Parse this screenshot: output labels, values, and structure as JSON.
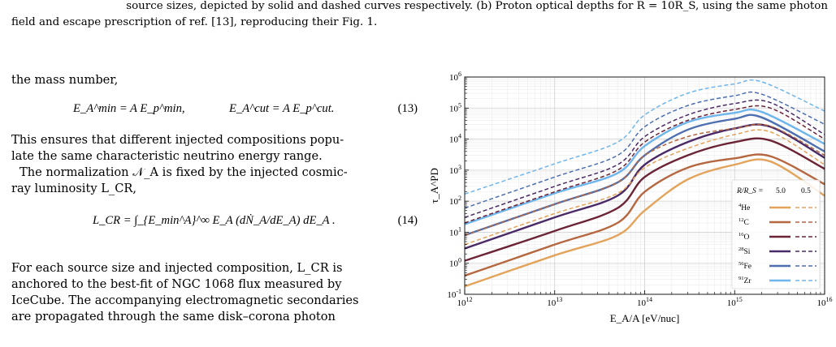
{
  "caption": {
    "line1": "source sizes, depicted by solid and dashed curves respectively. (b) Proton optical depths for R = 10R_S, using the same photon",
    "line2": "field and escape prescription of ref. [13], reproducing their Fig. 1."
  },
  "body": {
    "p1": "the mass number,",
    "eq13_left": "E_A^min = A E_p^min,",
    "eq13_right": "E_A^cut = A E_p^cut.",
    "eq13_num": "(13)",
    "p2_l1": "This ensures that different injected compositions popu-",
    "p2_l2": "late the same characteristic neutrino energy range.",
    "p3_l1": "The normalization 𝒩_A is fixed by the injected cosmic-",
    "p3_l2": "ray luminosity L_CR,",
    "eq14": "L_CR = ∫_{E_min^A}^∞ E_A (dṄ_A/dE_A) dE_A .",
    "eq14_num": "(14)",
    "p4_l1": "For each source size and injected composition, L_CR is",
    "p4_l2": "anchored to the best-fit of NGC 1068 flux measured by",
    "p4_l3": "IceCube. The accompanying electromagnetic secondaries",
    "p4_l4": "are propagated through the same disk–corona photon"
  },
  "chart_data": {
    "type": "line",
    "xlabel": "E_A/A [eV/nuc]",
    "ylabel": "τ_A^PD",
    "x_scale": "log",
    "y_scale": "log",
    "xlim": [
      1000000000000.0,
      1e+16
    ],
    "ylim": [
      0.1,
      1000000.0
    ],
    "x_ticks": [
      "10^12",
      "10^13",
      "10^14",
      "10^15",
      "10^16"
    ],
    "y_ticks": [
      "10^-1",
      "10^0",
      "10^1",
      "10^2",
      "10^3",
      "10^4",
      "10^5",
      "10^6"
    ],
    "grid": true,
    "legend": {
      "placement": "bottom-right",
      "header": "R/R_S =",
      "col_solid": "5.0",
      "col_dashed": "0.5",
      "rows": [
        {
          "mass": "4",
          "elem": "He",
          "color": "#e3a35a"
        },
        {
          "mass": "12",
          "elem": "C",
          "color": "#b5673f"
        },
        {
          "mass": "16",
          "elem": "O",
          "color": "#6b2436"
        },
        {
          "mass": "28",
          "elem": "Si",
          "color": "#4a2a66"
        },
        {
          "mass": "56",
          "elem": "Fe",
          "color": "#4d6fb0"
        },
        {
          "mass": "91",
          "elem": "Zr",
          "color": "#6eb6ec"
        }
      ]
    },
    "series": [
      {
        "name": "4He",
        "size": "5.0",
        "style": "solid",
        "color": "#e3a35a",
        "x": [
          1000000000000.0,
          10000000000000.0,
          50000000000000.0,
          100000000000000.0,
          300000000000000.0,
          1000000000000000.0,
          2500000000000000.0,
          1e+16
        ],
        "y": [
          0.18,
          1.8,
          8,
          50,
          500,
          1500,
          1900,
          150
        ]
      },
      {
        "name": "12C",
        "size": "5.0",
        "style": "solid",
        "color": "#b5673f",
        "x": [
          1000000000000.0,
          10000000000000.0,
          50000000000000.0,
          100000000000000.0,
          300000000000000.0,
          1000000000000000.0,
          2500000000000000.0,
          1e+16
        ],
        "y": [
          0.4,
          4,
          20,
          200,
          1200,
          2400,
          2800,
          350
        ]
      },
      {
        "name": "16O",
        "size": "5.0",
        "style": "solid",
        "color": "#6b2436",
        "x": [
          1000000000000.0,
          10000000000000.0,
          50000000000000.0,
          100000000000000.0,
          300000000000000.0,
          1000000000000000.0,
          2500000000000000.0,
          1e+16
        ],
        "y": [
          1.2,
          11,
          60,
          600,
          3000,
          8000,
          9000,
          1100
        ]
      },
      {
        "name": "28Si",
        "size": "5.0",
        "style": "solid",
        "color": "#4a2a66",
        "x": [
          1000000000000.0,
          10000000000000.0,
          50000000000000.0,
          100000000000000.0,
          300000000000000.0,
          1000000000000000.0,
          2500000000000000.0,
          1e+16
        ],
        "y": [
          3,
          30,
          150,
          1500,
          8000,
          22000,
          25000,
          2500
        ]
      },
      {
        "name": "56Fe",
        "size": "5.0",
        "style": "solid",
        "color": "#4d6fb0",
        "x": [
          1000000000000.0,
          10000000000000.0,
          50000000000000.0,
          100000000000000.0,
          300000000000000.0,
          1000000000000000.0,
          2000000000000000.0,
          1e+16
        ],
        "y": [
          8,
          80,
          400,
          3000,
          20000,
          45000,
          50000,
          4000
        ]
      },
      {
        "name": "91Zr",
        "size": "5.0",
        "style": "solid",
        "color": "#6eb6ec",
        "x": [
          1000000000000.0,
          10000000000000.0,
          50000000000000.0,
          100000000000000.0,
          300000000000000.0,
          1000000000000000.0,
          2000000000000000.0,
          1e+16
        ],
        "y": [
          18,
          180,
          800,
          6000,
          35000,
          70000,
          75000,
          7000
        ]
      },
      {
        "name": "4He",
        "size": "0.5",
        "style": "dashed",
        "color": "#e3a35a",
        "x": [
          1000000000000.0,
          10000000000000.0,
          50000000000000.0,
          100000000000000.0,
          300000000000000.0,
          1000000000000000.0,
          2500000000000000.0,
          1e+16
        ],
        "y": [
          4,
          40,
          180,
          1200,
          5000,
          14000,
          17000,
          1500
        ]
      },
      {
        "name": "12C",
        "size": "0.5",
        "style": "dashed",
        "color": "#b5673f",
        "x": [
          1000000000000.0,
          10000000000000.0,
          50000000000000.0,
          100000000000000.0,
          300000000000000.0,
          1000000000000000.0,
          2500000000000000.0,
          1e+16
        ],
        "y": [
          8,
          80,
          400,
          3000,
          12000,
          22000,
          26000,
          3000
        ]
      },
      {
        "name": "16O",
        "size": "0.5",
        "style": "dashed",
        "color": "#6b2436",
        "x": [
          1000000000000.0,
          10000000000000.0,
          50000000000000.0,
          100000000000000.0,
          300000000000000.0,
          1000000000000000.0,
          2500000000000000.0,
          1e+16
        ],
        "y": [
          20,
          200,
          1000,
          8000,
          40000,
          90000,
          100000,
          10000
        ]
      },
      {
        "name": "28Si",
        "size": "0.5",
        "style": "dashed",
        "color": "#4a2a66",
        "x": [
          1000000000000.0,
          10000000000000.0,
          50000000000000.0,
          100000000000000.0,
          300000000000000.0,
          1000000000000000.0,
          2500000000000000.0,
          1e+16
        ],
        "y": [
          30,
          300,
          1500,
          12000,
          60000,
          140000,
          150000,
          14000
        ]
      },
      {
        "name": "56Fe",
        "size": "0.5",
        "style": "dashed",
        "color": "#4d6fb0",
        "x": [
          1000000000000.0,
          10000000000000.0,
          50000000000000.0,
          100000000000000.0,
          300000000000000.0,
          1000000000000000.0,
          2000000000000000.0,
          1e+16
        ],
        "y": [
          60,
          600,
          3000,
          25000,
          120000,
          250000,
          280000,
          30000
        ]
      },
      {
        "name": "91Zr",
        "size": "0.5",
        "style": "dashed",
        "color": "#6eb6ec",
        "x": [
          1000000000000.0,
          10000000000000.0,
          50000000000000.0,
          100000000000000.0,
          300000000000000.0,
          1000000000000000.0,
          2000000000000000.0,
          1e+16
        ],
        "y": [
          170,
          1600,
          8000,
          60000,
          300000,
          600000,
          700000,
          80000
        ]
      }
    ]
  }
}
